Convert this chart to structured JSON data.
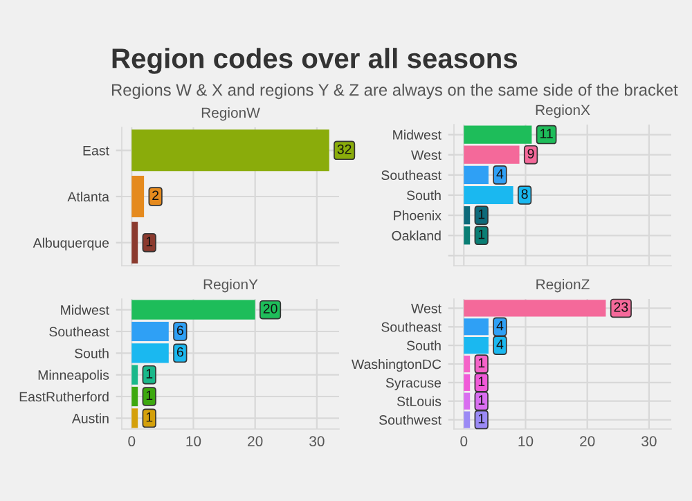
{
  "chart_data": [
    {
      "type": "other",
      "title": "Region codes over all seasons",
      "subtitle": "Regions W & X and regions Y & Z are always on the same side of the bracket"
    },
    {
      "type": "bar",
      "orientation": "horizontal",
      "title": "RegionW",
      "categories": [
        "East",
        "Atlanta",
        "Albuquerque"
      ],
      "values": [
        32,
        2,
        1
      ],
      "colors": [
        "#8aac0b",
        "#e58a1e",
        "#8b3a2e"
      ],
      "xlim": [
        -1.6,
        33.6
      ],
      "xticks": [
        0,
        10,
        20,
        30
      ],
      "tick_labels": "y",
      "grid": true,
      "data_labels": true
    },
    {
      "type": "bar",
      "orientation": "horizontal",
      "title": "RegionX",
      "categories": [
        "Midwest",
        "West",
        "Southeast",
        "South",
        "Phoenix",
        "Oakland",
        null
      ],
      "values": [
        11,
        9,
        4,
        8,
        1,
        1,
        null
      ],
      "colors": [
        "#1ebd5a",
        "#f4699a",
        "#2fa0f5",
        "#1ab8f0",
        "#0e6a7a",
        "#0a7e74",
        "#a08b10"
      ],
      "xlim": [
        -1.6,
        33.6
      ],
      "xticks": [
        0,
        10,
        20,
        30
      ],
      "tick_labels": "y",
      "grid": true,
      "data_labels": true
    },
    {
      "type": "bar",
      "orientation": "horizontal",
      "title": "RegionY",
      "categories": [
        "Midwest",
        "Southeast",
        "South",
        "Minneapolis",
        "EastRutherford",
        "Austin"
      ],
      "values": [
        20,
        6,
        6,
        1,
        1,
        1
      ],
      "colors": [
        "#1ebd5a",
        "#2fa0f5",
        "#1ab8f0",
        "#19b88a",
        "#3da80f",
        "#d4a00a"
      ],
      "xlim": [
        -1.6,
        33.6
      ],
      "xticks": [
        0,
        10,
        20,
        30
      ],
      "grid": true,
      "data_labels": true
    },
    {
      "type": "bar",
      "orientation": "horizontal",
      "title": "RegionZ",
      "categories": [
        "West",
        "Southeast",
        "South",
        "WashingtonDC",
        "Syracuse",
        "StLouis",
        "Southwest"
      ],
      "values": [
        23,
        4,
        4,
        1,
        1,
        1,
        1
      ],
      "colors": [
        "#f4699a",
        "#2fa0f5",
        "#1ab8f0",
        "#f563c8",
        "#f05ad8",
        "#d96ef0",
        "#9b8af5"
      ],
      "xlim": [
        -1.6,
        33.6
      ],
      "xticks": [
        0,
        10,
        20,
        30
      ],
      "grid": true,
      "data_labels": true
    }
  ]
}
